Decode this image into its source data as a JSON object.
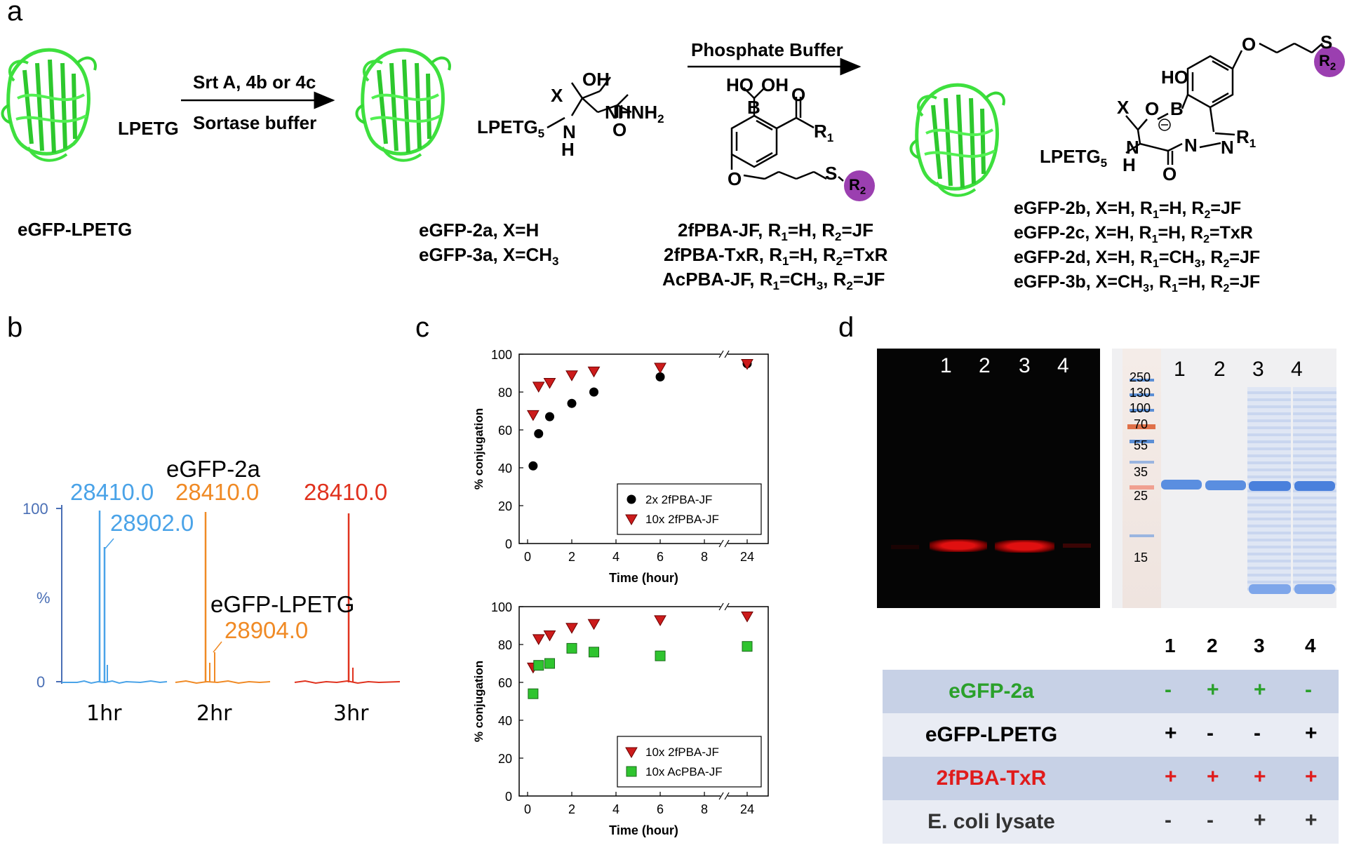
{
  "panels": {
    "a": "a",
    "b": "b",
    "c": "c",
    "d": "d"
  },
  "scheme": {
    "start_label": "eGFP-LPETG",
    "start_tag": "LPETG",
    "step1_top": "Srt A, 4b or 4c",
    "step1_bottom": "Sortase buffer",
    "mid_tag": "LPETG",
    "mid_sub": "5",
    "mid_X": "X",
    "mid_OH": "OH",
    "mid_NHNH2": "NHNH",
    "mid_NHNH2_sub": "2",
    "mid_NH": "N",
    "mid_H": "H",
    "mid_O": "O",
    "mid_products": [
      "eGFP-2a, X=H",
      "eGFP-3a, X=CH"
    ],
    "mid_products_sub": [
      "",
      "3"
    ],
    "step2_top": "Phosphate Buffer",
    "reagent_HO": "HO",
    "reagent_OH": "OH",
    "reagent_B": "B",
    "reagent_O": "O",
    "reagent_R1": "R",
    "reagent_S": "S",
    "reagent_R2": "R",
    "reagent_list": [
      {
        "name": "2fPBA-JF, R",
        "r1": "=H, R",
        "r2": "=JF"
      },
      {
        "name": "2fPBA-TxR, R",
        "r1": "=H, R",
        "r2": "=TxR"
      },
      {
        "name": "AcPBA-JF, R",
        "r1": "=CH",
        "r1sub": "3",
        "r2pre": ", R",
        "r2": "=JF"
      }
    ],
    "prod_HO": "HO",
    "prod_B": "B",
    "prod_O": "O",
    "prod_X": "X",
    "prod_N": "N",
    "prod_NN": "N",
    "prod_R1": "R",
    "prod_S": "S",
    "prod_R2": "R",
    "prod_tag": "LPETG",
    "prod_H": "H",
    "prod_list": [
      "eGFP-2b, X=H, R1=H, R2=JF",
      "eGFP-2c, X=H, R1=H, R2=TxR",
      "eGFP-2d, X=H, R1=CH3, R2=JF",
      "eGFP-3b, X=CH3, R1=H, R2=JF"
    ]
  },
  "ms": {
    "y_label": "%",
    "y_ticks": [
      "100",
      "0"
    ],
    "peaks": [
      {
        "label": "28410.0",
        "color": "#4aa3e8"
      },
      {
        "label": "28902.0",
        "color": "#4aa3e8"
      },
      {
        "label": "28410.0",
        "color": "#f08a25"
      },
      {
        "label": "28904.0",
        "color": "#f08a25"
      },
      {
        "label": "28410.0",
        "color": "#e0321e"
      }
    ],
    "annot_2a": "eGFP-2a",
    "annot_lpetg": "eGFP-LPETG",
    "x_groups": [
      "1hr",
      "2hr",
      "3hr"
    ]
  },
  "chart_data": [
    {
      "type": "scatter",
      "xlabel": "Time (hour)",
      "ylabel": "% conjugation",
      "ylim": [
        0,
        100
      ],
      "y_ticks": [
        "0",
        "20",
        "40",
        "60",
        "80",
        "100"
      ],
      "x_ticks": [
        "0",
        "2",
        "4",
        "6",
        "8",
        "24"
      ],
      "legend": "bottom-right",
      "series": [
        {
          "name": "2x 2fPBA-JF",
          "marker": "circle",
          "color": "#000000",
          "x": [
            0.25,
            0.5,
            1,
            2,
            3,
            6,
            24
          ],
          "y": [
            41,
            58,
            67,
            74,
            80,
            88,
            95
          ]
        },
        {
          "name": "10x 2fPBA-JF",
          "marker": "triangle-down",
          "color": "#cc1b1b",
          "x": [
            0.25,
            0.5,
            1,
            2,
            3,
            6,
            24
          ],
          "y": [
            68,
            83,
            85,
            89,
            91,
            93,
            95
          ]
        }
      ]
    },
    {
      "type": "scatter",
      "xlabel": "Time (hour)",
      "ylabel": "% conjugation",
      "ylim": [
        0,
        100
      ],
      "y_ticks": [
        "0",
        "20",
        "40",
        "60",
        "80",
        "100"
      ],
      "x_ticks": [
        "0",
        "2",
        "4",
        "6",
        "8",
        "24"
      ],
      "legend": "bottom-right",
      "series": [
        {
          "name": "10x 2fPBA-JF",
          "marker": "triangle-down",
          "color": "#cc1b1b",
          "x": [
            0.25,
            0.5,
            1,
            2,
            3,
            6,
            24
          ],
          "y": [
            68,
            83,
            85,
            89,
            91,
            93,
            95
          ]
        },
        {
          "name": "10x AcPBA-JF",
          "marker": "square",
          "color": "#2fc42f",
          "x": [
            0.25,
            0.5,
            1,
            2,
            3,
            6,
            24
          ],
          "y": [
            54,
            69,
            70,
            78,
            76,
            74,
            79
          ]
        }
      ]
    }
  ],
  "gel": {
    "lanes_fluor": [
      "1",
      "2",
      "3",
      "4"
    ],
    "lanes_coom": [
      "1",
      "2",
      "3",
      "4"
    ],
    "markers": [
      "250",
      "130",
      "100",
      "70",
      "55",
      "35",
      "25",
      "15"
    ],
    "table_header": [
      "1",
      "2",
      "3",
      "4"
    ],
    "rows": [
      {
        "label": "eGFP-2a",
        "color": "#2aa02a",
        "vals": [
          "-",
          "+",
          "+",
          "-"
        ],
        "valcolor": "#2aa02a",
        "bg": "#c7d1e6"
      },
      {
        "label": "eGFP-LPETG",
        "color": "#000000",
        "vals": [
          "+",
          "-",
          "-",
          "+"
        ],
        "valcolor": "#000000",
        "bg": "#e9ecf4"
      },
      {
        "label": "2fPBA-TxR",
        "color": "#e01b1b",
        "vals": [
          "+",
          "+",
          "+",
          "+"
        ],
        "valcolor": "#e01b1b",
        "bg": "#c7d1e6"
      },
      {
        "label": "E. coli lysate",
        "color": "#333333",
        "vals": [
          "-",
          "-",
          "+",
          "+"
        ],
        "valcolor": "#333333",
        "bg": "#e9ecf4"
      }
    ]
  }
}
